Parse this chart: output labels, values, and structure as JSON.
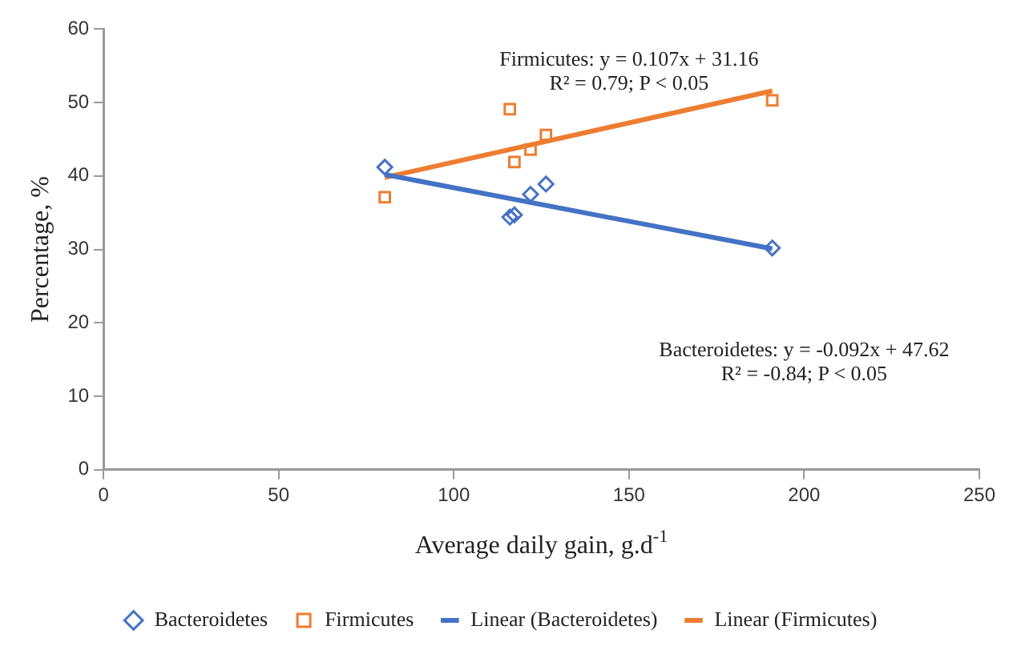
{
  "chart_data": {
    "type": "scatter",
    "xlabel": "Average daily gain, g.d$^{-1}$",
    "ylabel": "Percentage, %",
    "xlim": [
      0,
      250
    ],
    "xticks": [
      0,
      50,
      100,
      150,
      200,
      250
    ],
    "ylim": [
      0,
      60
    ],
    "yticks": [
      0,
      10,
      20,
      30,
      40,
      50,
      60
    ],
    "grid": false,
    "legend": "bottom",
    "annotations": [
      "Firmicutes: y = 0.107x + 31.16",
      "R² = 0.79; P < 0.05",
      "Bacteroidetes: y = -0.092x + 47.62",
      "R² = -0.84; P < 0.05"
    ],
    "series": [
      {
        "name": "Bacteroidetes",
        "marker": "diamond",
        "color": "#4472c4",
        "x": [
          80.3,
          116,
          117.3,
          121.9,
          126.3,
          190.9
        ],
        "values": [
          41.2,
          34.4,
          34.7,
          37.5,
          38.9,
          30.2
        ]
      },
      {
        "name": "Firmicutes",
        "marker": "square",
        "color": "#ed7d31",
        "x": [
          80.3,
          116,
          117.3,
          121.9,
          126.3,
          190.9
        ],
        "values": [
          37.1,
          49.1,
          41.9,
          43.6,
          45.6,
          50.3
        ]
      },
      {
        "name": "Linear (Bacteroidetes)",
        "type": "line",
        "marker": "none",
        "line_style": "solid",
        "color": "#4472c4",
        "x": [
          80.3,
          190.9
        ],
        "values": [
          40.2,
          30.1
        ]
      },
      {
        "name": "Linear (Firmicutes)",
        "type": "line",
        "marker": "none",
        "line_style": "solid",
        "color": "#ed7d31",
        "x": [
          80.3,
          190.9
        ],
        "values": [
          39.8,
          51.6
        ]
      }
    ]
  }
}
